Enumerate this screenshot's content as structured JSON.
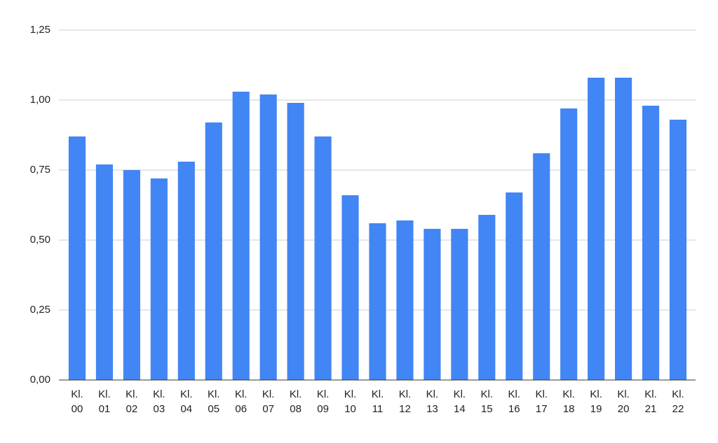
{
  "chart_data": {
    "type": "bar",
    "categories": [
      "Kl. 00",
      "Kl. 01",
      "Kl. 02",
      "Kl. 03",
      "Kl. 04",
      "Kl. 05",
      "Kl. 06",
      "Kl. 07",
      "Kl. 08",
      "Kl. 09",
      "Kl. 10",
      "Kl. 11",
      "Kl. 12",
      "Kl. 13",
      "Kl. 14",
      "Kl. 15",
      "Kl. 16",
      "Kl. 17",
      "Kl. 18",
      "Kl. 19",
      "Kl. 20",
      "Kl. 21",
      "Kl. 22"
    ],
    "values": [
      0.87,
      0.77,
      0.75,
      0.72,
      0.78,
      0.92,
      1.03,
      1.02,
      0.99,
      0.87,
      0.66,
      0.56,
      0.57,
      0.54,
      0.54,
      0.59,
      0.67,
      0.81,
      0.97,
      1.08,
      1.08,
      0.98,
      0.93
    ],
    "color": "#4285f4",
    "ylim": [
      0,
      1.25
    ],
    "yticks": [
      {
        "value": 0,
        "label": "0,00"
      },
      {
        "value": 0.25,
        "label": "0,25"
      },
      {
        "value": 0.5,
        "label": "0,50"
      },
      {
        "value": 0.75,
        "label": "0,75"
      },
      {
        "value": 1,
        "label": "1,00"
      },
      {
        "value": 1.25,
        "label": "1,25"
      }
    ],
    "grid": true
  }
}
